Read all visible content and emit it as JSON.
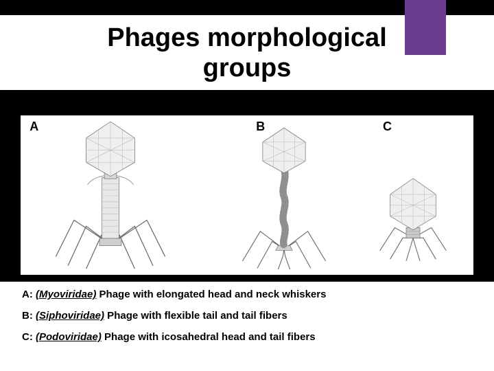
{
  "title": "Phages  morphological\ngroups",
  "accent_color": "#6b3c8f",
  "panels": {
    "A": {
      "label": "A",
      "left_pct": 2
    },
    "B": {
      "label": "B",
      "left_pct": 52
    },
    "C": {
      "label": "C",
      "left_pct": 80
    }
  },
  "captions": [
    {
      "prefix": "A: ",
      "family": "(Myoviridae)",
      "rest": " Phage with elongated head and neck whiskers"
    },
    {
      "prefix": "B: ",
      "family": "(Siphoviridae)",
      "rest": " Phage with flexible tail and tail fibers"
    },
    {
      "prefix": "C: ",
      "family": "(Podoviridae)",
      "rest": " Phage with icosahedral head and tail fibers"
    }
  ],
  "phage_style": {
    "stroke": "#7a7a7a",
    "stroke_width": 0.8,
    "fill": "#f2f2f2",
    "dark_fill": "#bfbfbf"
  }
}
